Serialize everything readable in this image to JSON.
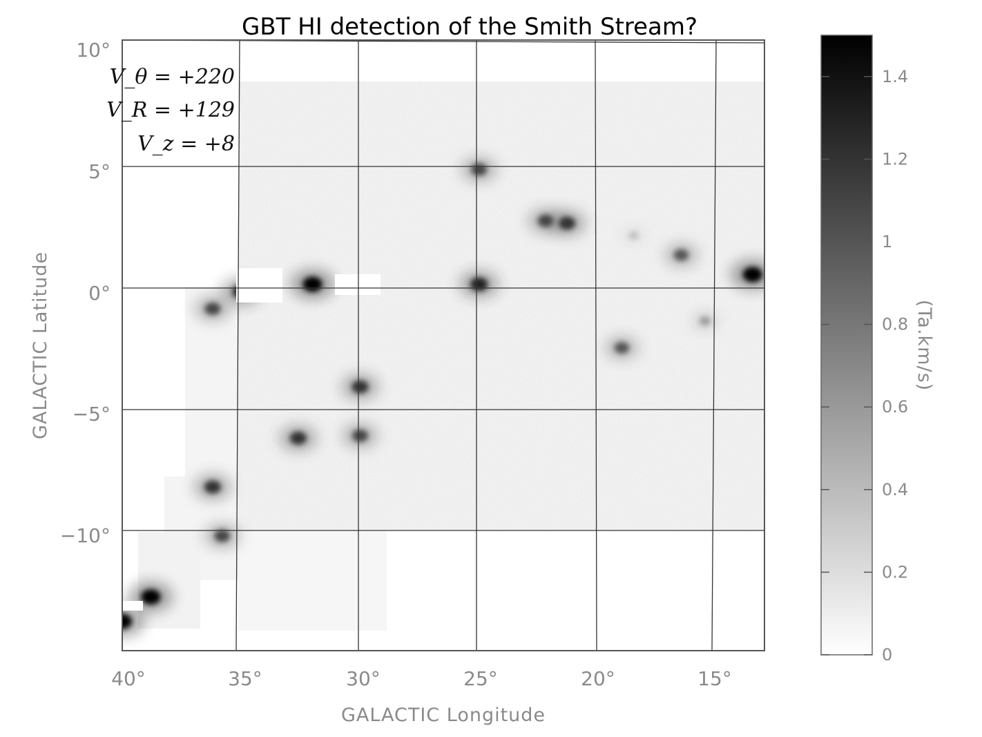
{
  "chart_data": {
    "type": "heatmap",
    "title": "GBT HI detection of the Smith Stream?",
    "xlabel": "GALACTIC Longitude",
    "ylabel": "GALACTIC Latitude",
    "xlim": [
      40,
      13
    ],
    "ylim": [
      -15,
      10
    ],
    "x_ticks": [
      "40°",
      "35°",
      "30°",
      "25°",
      "20°",
      "15°"
    ],
    "y_ticks": [
      "10°",
      "5°",
      "0°",
      "−5°",
      "−10°"
    ],
    "x_tick_values": [
      40,
      35,
      30,
      25,
      20,
      15
    ],
    "y_tick_values": [
      10,
      5,
      0,
      -5,
      -10
    ],
    "grid": true,
    "colormap": "grayscale (white = 0, black = max)",
    "colorbar": {
      "label": "(Ta.km/s)",
      "min": 0,
      "max": 1.5,
      "ticks": [
        "0",
        "0.2",
        "0.4",
        "0.6",
        "0.8",
        "1",
        "1.2",
        "1.4"
      ],
      "tick_values": [
        0,
        0.2,
        0.4,
        0.6,
        0.8,
        1.0,
        1.2,
        1.4
      ]
    },
    "annotations": [
      "V_θ = +220",
      "V_R = +129",
      "V_z = +8"
    ],
    "features": [
      {
        "l": 13.5,
        "b": 0.4,
        "intensity": 1.5
      },
      {
        "l": 16.5,
        "b": 1.2,
        "intensity": 1.0
      },
      {
        "l": 18.5,
        "b": 2.0,
        "intensity": 0.4
      },
      {
        "l": 21.3,
        "b": 2.5,
        "intensity": 1.2
      },
      {
        "l": 22.2,
        "b": 2.6,
        "intensity": 1.1
      },
      {
        "l": 25.0,
        "b": 4.7,
        "intensity": 1.1
      },
      {
        "l": 25.0,
        "b": 0.0,
        "intensity": 1.3
      },
      {
        "l": 19.0,
        "b": -2.6,
        "intensity": 1.0
      },
      {
        "l": 15.5,
        "b": -1.5,
        "intensity": 0.6
      },
      {
        "l": 32.0,
        "b": 0.0,
        "intensity": 1.5
      },
      {
        "l": 35.0,
        "b": -0.3,
        "intensity": 1.3
      },
      {
        "l": 36.2,
        "b": -1.0,
        "intensity": 1.1
      },
      {
        "l": 30.0,
        "b": -4.2,
        "intensity": 1.2
      },
      {
        "l": 32.6,
        "b": -6.3,
        "intensity": 1.2
      },
      {
        "l": 30.0,
        "b": -6.2,
        "intensity": 1.1
      },
      {
        "l": 36.2,
        "b": -8.3,
        "intensity": 1.2
      },
      {
        "l": 35.8,
        "b": -10.3,
        "intensity": 1.1
      },
      {
        "l": 38.8,
        "b": -12.8,
        "intensity": 1.5
      },
      {
        "l": 40.0,
        "b": -13.8,
        "intensity": 1.5
      }
    ]
  }
}
